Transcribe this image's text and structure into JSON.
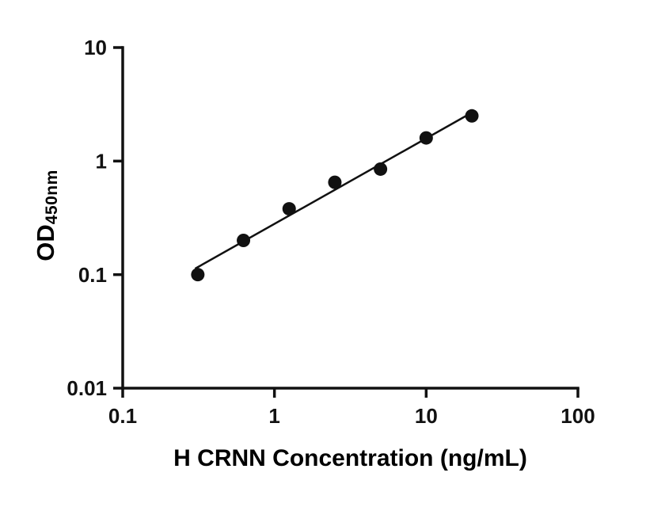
{
  "chart_data": {
    "type": "scatter",
    "title": "",
    "xlabel": "H CRNN Concentration (ng/mL)",
    "ylabel_main": "OD",
    "ylabel_sub": "450nm",
    "xscale": "log",
    "yscale": "log",
    "xlim": [
      0.1,
      100
    ],
    "ylim": [
      0.01,
      10
    ],
    "xticks": [
      0.1,
      1,
      10,
      100
    ],
    "xtick_labels": [
      "0.1",
      "1",
      "10",
      "100"
    ],
    "yticks": [
      0.01,
      0.1,
      1,
      10
    ],
    "ytick_labels": [
      "0.01",
      "0.1",
      "1",
      "10"
    ],
    "x": [
      0.3125,
      0.625,
      1.25,
      2.5,
      5,
      10,
      20
    ],
    "y": [
      0.1,
      0.2,
      0.38,
      0.65,
      0.85,
      1.6,
      2.5
    ],
    "fit_line": {
      "type": "linear-loglog",
      "x_start": 0.3,
      "x_end": 20.5
    },
    "grid": false,
    "legend": null,
    "marker_color": "#111111",
    "line_color": "#111111",
    "axis_color": "#111111"
  }
}
